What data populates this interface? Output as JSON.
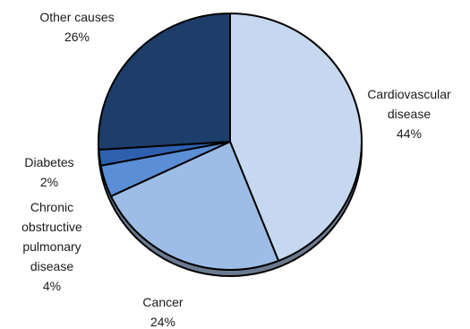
{
  "chart_data": {
    "type": "pie",
    "title": "",
    "start": "12 o'clock",
    "direction": "clockwise",
    "slices": [
      {
        "name": "Cardiovascular disease",
        "value": 44,
        "label_lines": [
          "Cardiovascular",
          "disease",
          "44%"
        ],
        "color": "#c5d8ef"
      },
      {
        "name": "Cancer",
        "value": 24,
        "label_lines": [
          "Cancer",
          "24%"
        ],
        "color": "#9dbde6"
      },
      {
        "name": "Chronic obstructive pulmonary disease",
        "value": 4,
        "label_lines": [
          "Chronic",
          "obstructive",
          "pulmonary",
          "disease",
          "4%"
        ],
        "color": "#5a8fd6"
      },
      {
        "name": "Diabetes",
        "value": 2,
        "label_lines": [
          "Diabetes",
          "2%"
        ],
        "color": "#2e60b0"
      },
      {
        "name": "Other causes",
        "value": 26,
        "label_lines": [
          "Other causes",
          "26%"
        ],
        "color": "#1d3e6a"
      }
    ]
  }
}
